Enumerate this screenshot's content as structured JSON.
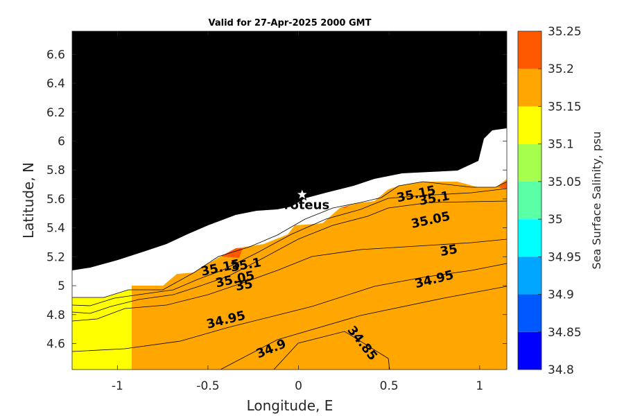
{
  "chart_data": {
    "type": "heatmap",
    "title": "Valid for 27-Apr-2025 2000 GMT",
    "xlabel": "Longitude, E",
    "ylabel": "Latitude, N",
    "xlim": [
      -1.25,
      1.15
    ],
    "ylim": [
      4.42,
      6.76
    ],
    "x_ticks": [
      -1,
      -0.5,
      0,
      0.5,
      1
    ],
    "x_tick_labels": [
      "-1",
      "-0.5",
      "0",
      "0.5",
      "1"
    ],
    "y_ticks": [
      4.6,
      4.8,
      5.0,
      5.2,
      5.4,
      5.6,
      5.8,
      6.0,
      6.2,
      6.4,
      6.6
    ],
    "y_tick_labels": [
      "4.6",
      "4.8",
      "5",
      "5.2",
      "5.4",
      "5.6",
      "5.8",
      "6",
      "6.2",
      "6.4",
      "6.6"
    ],
    "colorbar": {
      "label": "Sea Surface Salinity, psu",
      "levels": [
        34.8,
        34.85,
        34.9,
        34.95,
        35,
        35.05,
        35.1,
        35.15,
        35.2,
        35.25
      ],
      "tick_labels": [
        "34.8",
        "34.85",
        "34.9",
        "34.95",
        "35",
        "35.05",
        "35.1",
        "35.15",
        "35.2",
        "35.25"
      ],
      "colors": [
        "#0000ff",
        "#0059ff",
        "#00a6ff",
        "#00ffff",
        "#5affa6",
        "#a6ff4d",
        "#ffff00",
        "#ffa600",
        "#ff5900"
      ]
    },
    "contour_labels": [
      {
        "text": "34.85",
        "lon": 0.35,
        "lat": 4.6
      },
      {
        "text": "34.9",
        "lon": -0.15,
        "lat": 4.56
      },
      {
        "text": "34.95",
        "lon": -0.4,
        "lat": 4.76
      },
      {
        "text": "34.95",
        "lon": 0.75,
        "lat": 5.04
      },
      {
        "text": "35",
        "lon": 0.83,
        "lat": 5.24
      },
      {
        "text": "35",
        "lon": -0.3,
        "lat": 5.0
      },
      {
        "text": "35.05",
        "lon": 0.73,
        "lat": 5.45
      },
      {
        "text": "35.05",
        "lon": -0.35,
        "lat": 5.04
      },
      {
        "text": "35.1",
        "lon": 0.75,
        "lat": 5.6
      },
      {
        "text": "35.1",
        "lon": -0.29,
        "lat": 5.14
      },
      {
        "text": "35.15",
        "lon": 0.65,
        "lat": 5.63
      },
      {
        "text": "35.15",
        "lon": -0.43,
        "lat": 5.12
      }
    ],
    "annotations": [
      {
        "text": "Proteus",
        "lon": 0.02,
        "lat": 5.63,
        "marker": "star"
      }
    ],
    "land_color": "#000000",
    "nodata_color": "#ffffff"
  }
}
